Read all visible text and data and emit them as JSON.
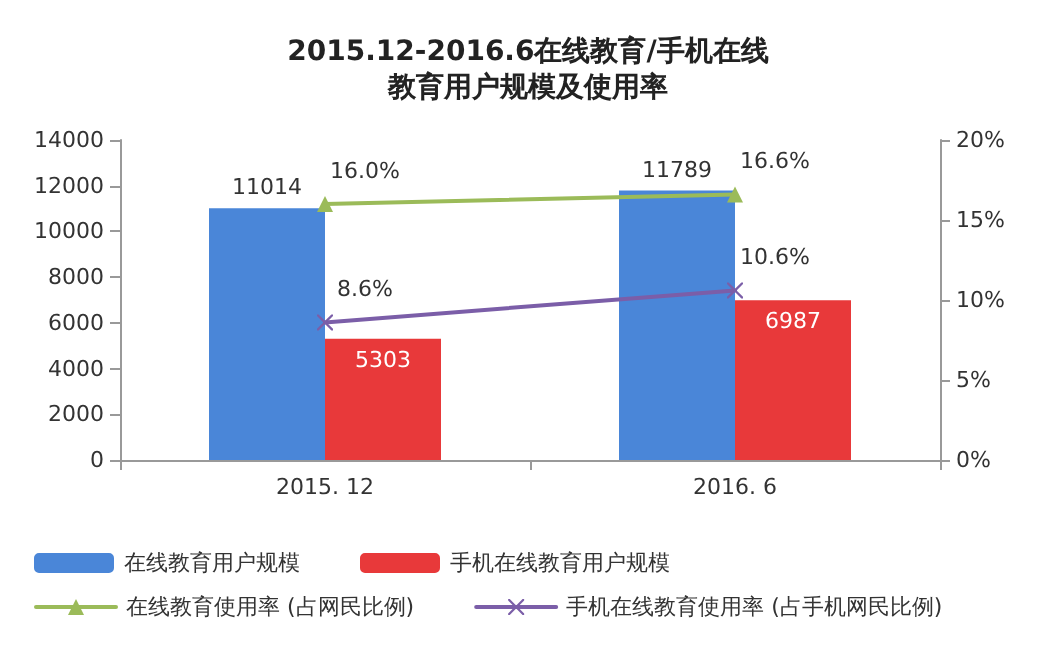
{
  "chart_data": {
    "type": "bar",
    "title": "2015.12-2016.6在线教育/手机在线教育用户规模及使用率",
    "categories": [
      "2015. 12",
      "2016. 6"
    ],
    "series": [
      {
        "name": "在线教育用户规模",
        "color": "#4a86d8",
        "values": [
          11014,
          11789
        ],
        "value_labels": [
          "11014",
          "11789"
        ]
      },
      {
        "name": "手机在线教育用户规模",
        "color": "#e8393a",
        "values": [
          5303,
          6987
        ],
        "value_labels": [
          "5303",
          "6987"
        ]
      },
      {
        "name": "在线教育使用率 (占网民比例)",
        "type": "line",
        "axis": "y2",
        "marker": "triangle",
        "color": "#9bbb59",
        "values": [
          16.0,
          16.6
        ],
        "value_labels": [
          "16.0%",
          "16.6%"
        ]
      },
      {
        "name": "手机在线教育使用率 (占手机网民比例)",
        "type": "line",
        "axis": "y2",
        "marker": "cross",
        "color": "#7b5ea8",
        "values": [
          8.6,
          10.6
        ],
        "value_labels": [
          "8.6%",
          "10.6%"
        ]
      }
    ],
    "ylim": [
      0,
      14000
    ],
    "yticks": [
      0,
      2000,
      4000,
      6000,
      8000,
      10000,
      12000,
      14000
    ],
    "y2lim": [
      0,
      20
    ],
    "y2ticks": [
      {
        "value": 0,
        "label": "0%"
      },
      {
        "value": 5,
        "label": "5%"
      },
      {
        "value": 10,
        "label": "10%"
      },
      {
        "value": 15,
        "label": "15%"
      },
      {
        "value": 20,
        "label": "20%"
      }
    ],
    "legend": "bottom"
  }
}
